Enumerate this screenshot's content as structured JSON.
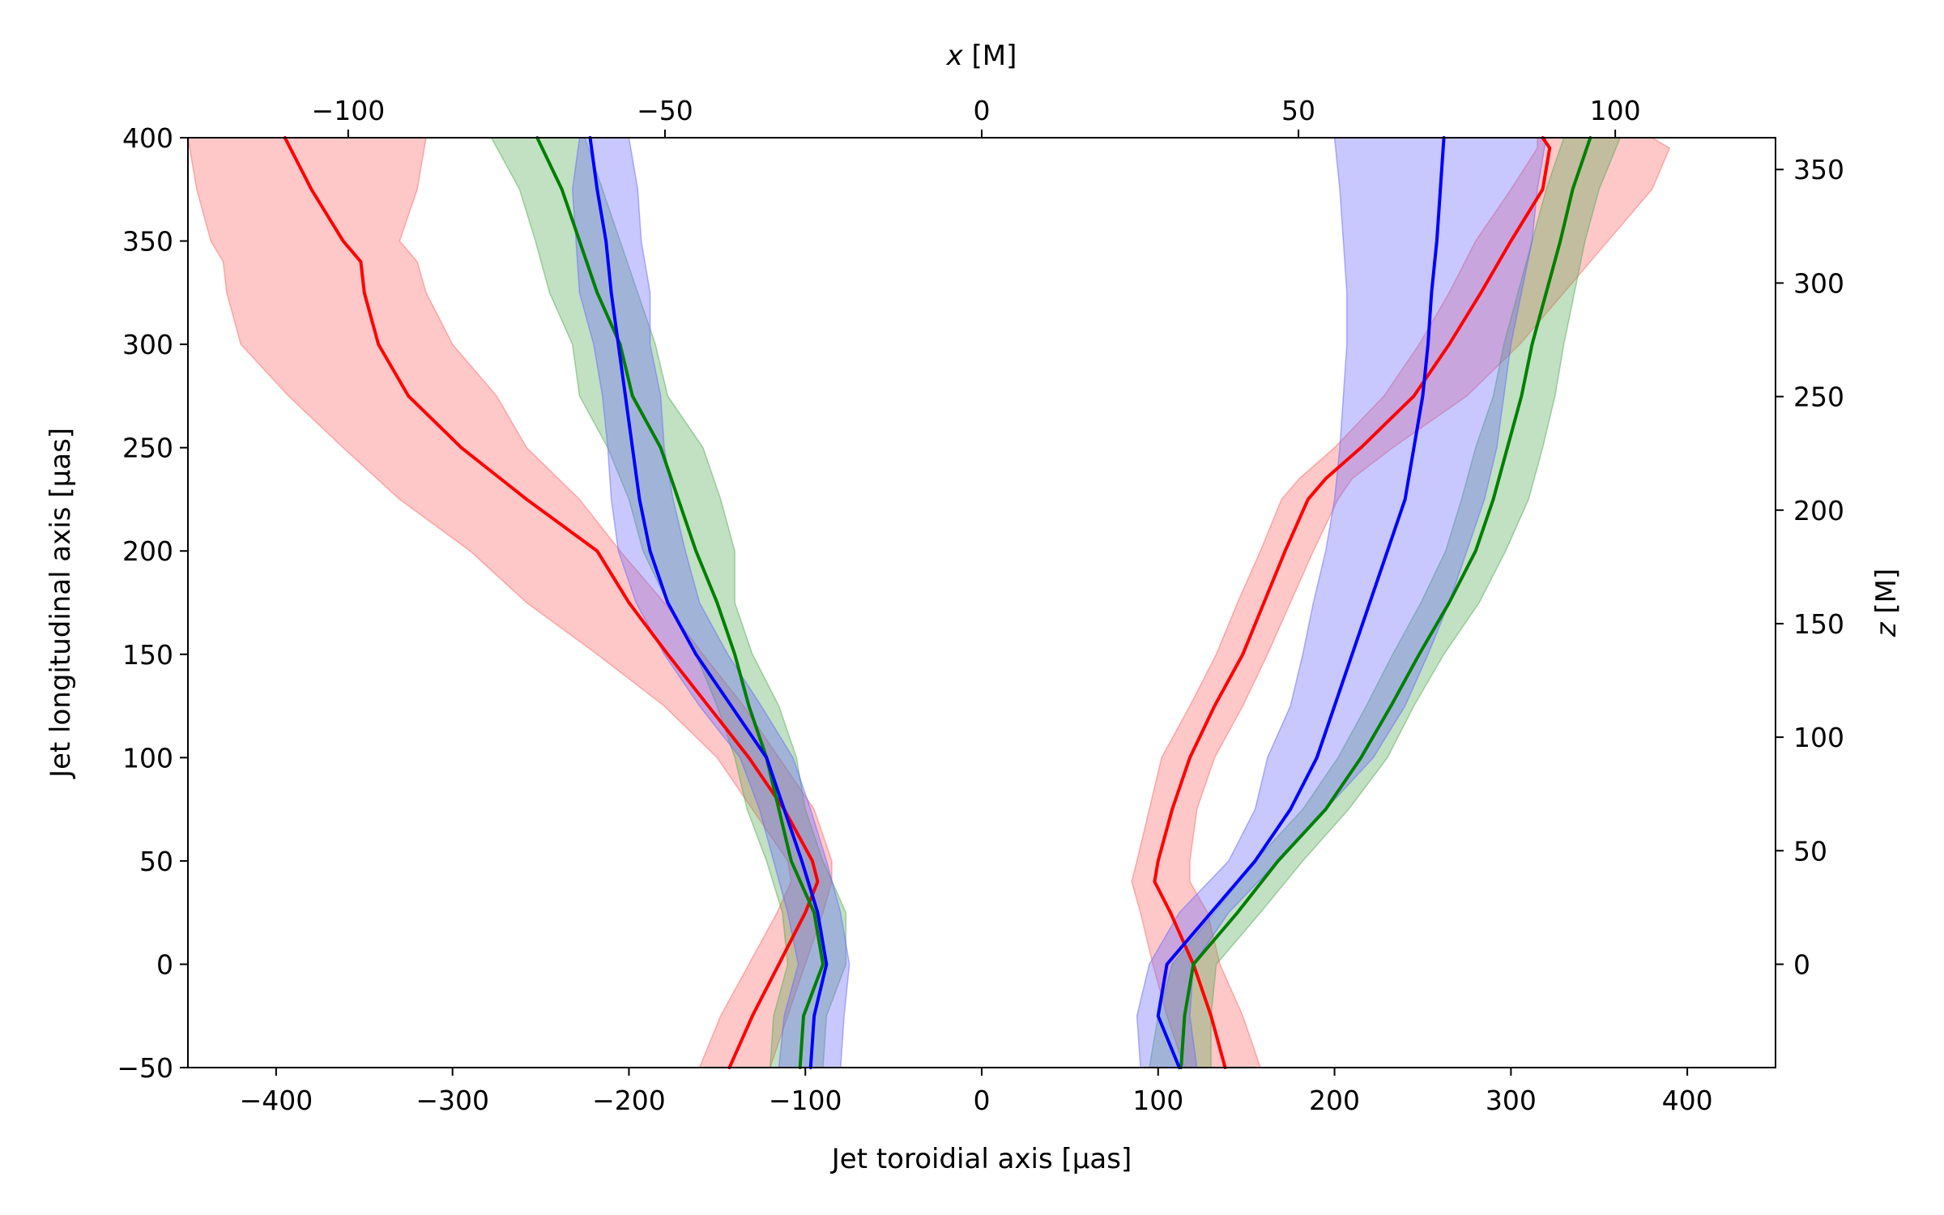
{
  "chart_data": {
    "type": "line",
    "title": "",
    "xlabel": "Jet toroidial axis [μas]",
    "ylabel": "Jet longitudinal axis [μas]",
    "x2label_var": "x",
    "x2label_unit": " [M]",
    "y2label_var": "z",
    "y2label_unit": " [M]",
    "xlim": [
      -450,
      450
    ],
    "ylim": [
      -50,
      400
    ],
    "xticks": [
      -400,
      -300,
      -200,
      -100,
      0,
      100,
      200,
      300,
      400
    ],
    "yticks": [
      -50,
      0,
      50,
      100,
      150,
      200,
      250,
      300,
      350,
      400
    ],
    "x2lim": [
      -125.3,
      125.3
    ],
    "x2ticks": [
      -100,
      -50,
      0,
      50,
      100
    ],
    "x2tick_labels": [
      "−100",
      "−50",
      "0",
      "50",
      "100"
    ],
    "y2lim": [
      -45.5,
      364
    ],
    "y2ticks": [
      0,
      50,
      100,
      150,
      200,
      250,
      300,
      350
    ],
    "grid": false,
    "colors": {
      "red": "#ff0000",
      "green": "#007f00",
      "blue": "#0000ff",
      "red_band": "#ff6666",
      "green_band": "#55aa55",
      "blue_band": "#6666ff"
    },
    "series": [
      {
        "name": "red-left",
        "color": "red",
        "y": [
          -50,
          -25,
          0,
          25,
          40,
          50,
          75,
          100,
          125,
          150,
          175,
          200,
          225,
          250,
          275,
          300,
          325,
          340,
          350,
          375,
          400
        ],
        "x": [
          -143,
          -130,
          -115,
          -100,
          -93,
          -96,
          -112,
          -132,
          -155,
          -178,
          -200,
          -218,
          -258,
          -295,
          -325,
          -342,
          -350,
          -352,
          -362,
          -380,
          -395
        ],
        "lower": [
          -160,
          -148,
          -132,
          -116,
          -108,
          -110,
          -130,
          -150,
          -180,
          -218,
          -258,
          -290,
          -330,
          -362,
          -393,
          -420,
          -428,
          -430,
          -437,
          -445,
          -450
        ],
        "upper": [
          -120,
          -110,
          -100,
          -90,
          -85,
          -85,
          -95,
          -115,
          -135,
          -158,
          -180,
          -205,
          -228,
          -258,
          -275,
          -300,
          -315,
          -320,
          -330,
          -320,
          -315
        ]
      },
      {
        "name": "green-left",
        "color": "green",
        "y": [
          -50,
          -25,
          0,
          25,
          50,
          75,
          100,
          125,
          150,
          175,
          200,
          225,
          250,
          275,
          300,
          325,
          350,
          375,
          400
        ],
        "x": [
          -103,
          -101,
          -90,
          -95,
          -108,
          -115,
          -122,
          -132,
          -140,
          -150,
          -162,
          -172,
          -182,
          -198,
          -205,
          -218,
          -228,
          -238,
          -252
        ],
        "lower": [
          -120,
          -118,
          -110,
          -113,
          -122,
          -133,
          -140,
          -150,
          -162,
          -178,
          -192,
          -200,
          -212,
          -228,
          -232,
          -245,
          -253,
          -262,
          -278
        ],
        "upper": [
          -90,
          -88,
          -77,
          -77,
          -90,
          -100,
          -105,
          -115,
          -130,
          -140,
          -140,
          -148,
          -158,
          -178,
          -185,
          -195,
          -205,
          -215,
          -225
        ]
      },
      {
        "name": "blue-left",
        "color": "blue",
        "y": [
          -50,
          -25,
          0,
          25,
          50,
          75,
          100,
          125,
          150,
          175,
          200,
          225,
          250,
          275,
          300,
          325,
          350,
          375,
          400
        ],
        "x": [
          -97,
          -95,
          -88,
          -93,
          -102,
          -112,
          -122,
          -142,
          -162,
          -178,
          -188,
          -194,
          -198,
          -202,
          -206,
          -210,
          -213,
          -218,
          -222
        ],
        "lower": [
          -115,
          -112,
          -104,
          -110,
          -118,
          -126,
          -137,
          -160,
          -180,
          -196,
          -206,
          -210,
          -212,
          -215,
          -220,
          -228,
          -230,
          -232,
          -228
        ],
        "upper": [
          -80,
          -78,
          -75,
          -80,
          -88,
          -97,
          -107,
          -125,
          -144,
          -160,
          -168,
          -175,
          -180,
          -182,
          -188,
          -188,
          -193,
          -195,
          -200
        ]
      },
      {
        "name": "red-right",
        "color": "red",
        "y": [
          -50,
          -25,
          0,
          25,
          40,
          50,
          75,
          100,
          125,
          150,
          175,
          200,
          225,
          235,
          250,
          275,
          300,
          325,
          350,
          375,
          395,
          400
        ],
        "x": [
          138,
          130,
          120,
          107,
          98,
          100,
          108,
          118,
          132,
          148,
          160,
          172,
          185,
          195,
          215,
          245,
          265,
          283,
          300,
          318,
          322,
          318
        ],
        "lower": [
          115,
          105,
          97,
          90,
          85,
          88,
          95,
          102,
          118,
          133,
          145,
          158,
          170,
          180,
          200,
          228,
          248,
          265,
          280,
          300,
          315,
          315
        ],
        "upper": [
          158,
          148,
          135,
          128,
          118,
          118,
          122,
          132,
          148,
          162,
          175,
          188,
          202,
          210,
          233,
          275,
          305,
          330,
          355,
          380,
          390,
          380
        ]
      },
      {
        "name": "green-right",
        "color": "green",
        "y": [
          -50,
          -25,
          0,
          25,
          50,
          75,
          100,
          125,
          150,
          175,
          200,
          225,
          250,
          275,
          300,
          325,
          350,
          375,
          400
        ],
        "x": [
          113,
          115,
          120,
          145,
          168,
          195,
          215,
          232,
          248,
          265,
          280,
          290,
          298,
          306,
          312,
          320,
          328,
          335,
          345
        ],
        "lower": [
          95,
          100,
          108,
          132,
          155,
          182,
          202,
          218,
          233,
          249,
          263,
          272,
          280,
          290,
          296,
          304,
          312,
          320,
          330
        ],
        "upper": [
          130,
          130,
          133,
          158,
          182,
          208,
          230,
          245,
          262,
          282,
          297,
          310,
          318,
          325,
          330,
          336,
          342,
          350,
          362
        ]
      },
      {
        "name": "blue-right",
        "color": "blue",
        "y": [
          -50,
          -25,
          0,
          25,
          50,
          75,
          100,
          125,
          150,
          175,
          200,
          225,
          250,
          275,
          300,
          325,
          350,
          375,
          400
        ],
        "x": [
          112,
          100,
          105,
          130,
          155,
          175,
          190,
          200,
          210,
          220,
          230,
          240,
          245,
          250,
          253,
          255,
          258,
          260,
          262
        ],
        "lower": [
          90,
          88,
          95,
          112,
          140,
          155,
          162,
          175,
          182,
          188,
          195,
          200,
          203,
          205,
          207,
          207,
          205,
          203,
          200
        ],
        "upper": [
          122,
          118,
          120,
          140,
          168,
          195,
          222,
          240,
          253,
          265,
          275,
          285,
          292,
          296,
          300,
          306,
          312,
          315,
          320
        ]
      }
    ]
  }
}
